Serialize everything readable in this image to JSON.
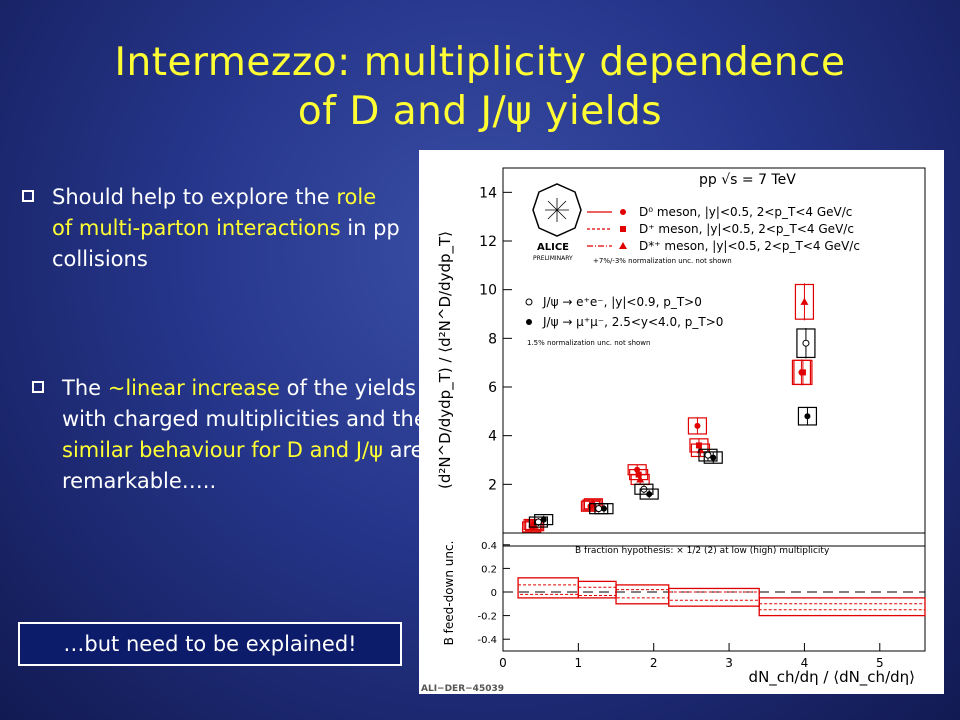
{
  "slide": {
    "title_line1": "Intermezzo: multiplicity dependence",
    "title_line2": "of D and J/ψ yields",
    "bullet1": {
      "pre": "Should help to explore the ",
      "highlight": "role of multi-parton interactions",
      "post": " in pp collisions"
    },
    "bullet2": {
      "pre": "The ",
      "highlight1": "~linear increase",
      "mid": " of the yields with charged multiplicities and the ",
      "highlight2": "similar behaviour for D and J/ψ",
      "post": " are remarkable…..",
      "post_visible": " are remarkable….."
    },
    "callout": "…but need to be explained!",
    "colors": {
      "title": "#ffff33",
      "text": "#ffffff",
      "highlight": "#ffff33",
      "data_red": "#e00000"
    }
  },
  "chart_data": {
    "type": "scatter",
    "legend_title": "pp √s = 7 TeV",
    "logo_text": [
      "ALICE",
      "PRELIMINARY"
    ],
    "watermark": "ALI−DER−45039",
    "xlabel": "dN_ch/dη / ⟨dN_ch/dη⟩",
    "ylabel_top": "(d²N^D/dydp_T) / ⟨d²N^D/dydp_T⟩",
    "ylabel_bottom": "B feed-down unc.",
    "xlim": [
      0,
      5.6
    ],
    "ylim_top": [
      0,
      15
    ],
    "ylim_bottom": [
      -0.5,
      0.5
    ],
    "x_ticks": [
      0,
      1,
      2,
      3,
      4,
      5
    ],
    "y_ticks_top": [
      2,
      4,
      6,
      8,
      10,
      12,
      14
    ],
    "y_ticks_bottom": [
      -0.4,
      -0.2,
      0,
      0.2,
      0.4
    ],
    "legend_d": [
      "D⁰ meson, |y|<0.5, 2<p_T<4 GeV/c",
      "D⁺ meson, |y|<0.5, 2<p_T<4 GeV/c",
      "D*⁺ meson, |y|<0.5, 2<p_T<4 GeV/c"
    ],
    "legend_d_note": "+7%/-3% normalization unc. not shown",
    "legend_jpsi": [
      "J/ψ → e⁺e⁻, |y|<0.9, p_T>0",
      "J/ψ → μ⁺μ⁻, 2.5<y<4.0, p_T>0"
    ],
    "legend_jpsi_note": "1.5% normalization unc. not shown",
    "bottom_note": "B fraction hypothesis: × 1/2 (2) at low (high) multiplicity",
    "series": [
      {
        "name": "D⁰ meson",
        "marker": "circle",
        "color": "#e00000",
        "x": [
          0.42,
          1.2,
          1.82,
          2.62,
          4.0
        ],
        "y": [
          0.25,
          1.1,
          2.6,
          4.4,
          6.6
        ]
      },
      {
        "name": "D⁺ meson",
        "marker": "square",
        "color": "#e00000",
        "x": [
          0.42,
          1.2,
          1.82,
          2.62,
          4.0
        ],
        "y": [
          0.35,
          1.15,
          2.4,
          3.6,
          6.6
        ]
      },
      {
        "name": "D*⁺ meson",
        "marker": "triangle",
        "color": "#e00000",
        "x": [
          0.42,
          1.2,
          1.82,
          2.62,
          4.0
        ],
        "y": [
          0.3,
          1.2,
          2.2,
          3.4,
          9.5
        ]
      },
      {
        "name": "J/ψ → e⁺e⁻",
        "marker": "open-circle",
        "color": "#000000",
        "x": [
          0.45,
          1.25,
          1.85,
          2.7,
          4.0
        ],
        "y": [
          0.45,
          1.0,
          1.8,
          3.2,
          7.8
        ]
      },
      {
        "name": "J/ψ → μ⁺μ⁻",
        "marker": "circle",
        "color": "#000000",
        "x": [
          0.5,
          1.3,
          1.9,
          2.75,
          4.0
        ],
        "y": [
          0.55,
          1.0,
          1.6,
          3.1,
          4.8
        ]
      }
    ],
    "bfeed_bands": [
      {
        "x": [
          0.2,
          1.0
        ],
        "upper": [
          0.12,
          0.06
        ],
        "lower": [
          -0.05,
          -0.02
        ]
      },
      {
        "x": [
          1.0,
          1.5
        ],
        "upper": [
          0.09,
          0.04
        ],
        "lower": [
          -0.05,
          -0.03
        ]
      },
      {
        "x": [
          1.5,
          2.2
        ],
        "upper": [
          0.06,
          0.02
        ],
        "lower": [
          -0.1,
          -0.05
        ]
      },
      {
        "x": [
          2.2,
          3.4
        ],
        "upper": [
          0.03,
          0.0
        ],
        "lower": [
          -0.12,
          -0.07
        ]
      },
      {
        "x": [
          3.4,
          5.6
        ],
        "upper": [
          -0.05,
          -0.1
        ],
        "lower": [
          -0.2,
          -0.15
        ]
      }
    ]
  }
}
